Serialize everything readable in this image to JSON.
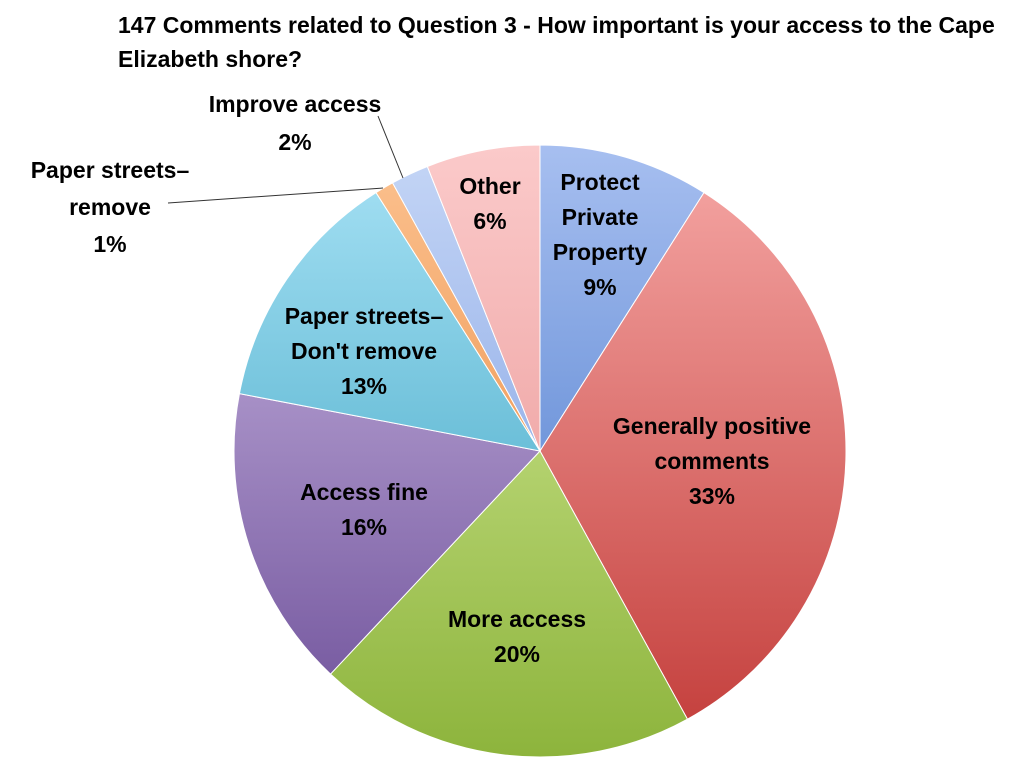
{
  "chart_data": {
    "type": "pie",
    "title": "147 Comments related to Question 3 - How important is your access to the Cape Elizabeth shore?",
    "slices": [
      {
        "key": "protect",
        "label": "Protect Private Property",
        "value": 9,
        "value_label": "9%",
        "color_light": "#a7bff0",
        "color_dark": "#3c6fc6"
      },
      {
        "key": "positive",
        "label": "Generally positive comments",
        "value": 33,
        "value_label": "33%",
        "color_light": "#f6a8a6",
        "color_dark": "#c23b38"
      },
      {
        "key": "more",
        "label": "More access",
        "value": 20,
        "value_label": "20%",
        "color_light": "#dbf0a2",
        "color_dark": "#8db43c"
      },
      {
        "key": "fine",
        "label": "Access fine",
        "value": 16,
        "value_label": "16%",
        "color_light": "#cfbde6",
        "color_dark": "#6c4e98"
      },
      {
        "key": "dont-remove",
        "label": "Paper streets– Don't remove",
        "value": 13,
        "value_label": "13%",
        "color_light": "#a8e2f5",
        "color_dark": "#2f9cbc"
      },
      {
        "key": "remove",
        "label": "Paper streets– remove",
        "value": 1,
        "value_label": "1%",
        "color_light": "#fcc290",
        "color_dark": "#e57f32"
      },
      {
        "key": "improve",
        "label": "Improve access",
        "value": 2,
        "value_label": "2%",
        "color_light": "#c5d6f6",
        "color_dark": "#6f93de"
      },
      {
        "key": "other",
        "label": "Other",
        "value": 6,
        "value_label": "6%",
        "color_light": "#fbcaca",
        "color_dark": "#e68c8b"
      }
    ],
    "legend": "none"
  }
}
